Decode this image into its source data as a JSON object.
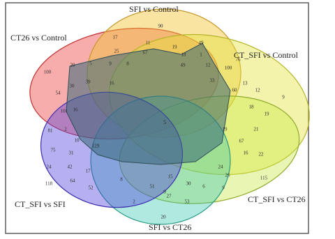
{
  "sets": [
    {
      "id": "ct26",
      "name": "CT26 vs Control",
      "color": "#f04a4a"
    },
    {
      "id": "sfi_control",
      "name": "SFI vs Control",
      "color": "#f2c431"
    },
    {
      "id": "ct_sfi_control",
      "name": "CT_SFI vs Control",
      "color": "#e3e33a"
    },
    {
      "id": "ct_sfi_ct26",
      "name": "CT_SFI vs CT26",
      "color": "#c7e840"
    },
    {
      "id": "sfi_ct26",
      "name": "SFI vs CT26",
      "color": "#39c9b0"
    },
    {
      "id": "ct_sfi_sfi",
      "name": "CT_SFI vs SFI",
      "color": "#4b39d9"
    },
    {
      "id": "center_region",
      "name": "",
      "color": "#3a6a7a"
    }
  ],
  "counts": [
    {
      "id": "sfi-only",
      "value": "90"
    },
    {
      "id": "r1",
      "value": "17"
    },
    {
      "id": "r2",
      "value": "11"
    },
    {
      "id": "r3",
      "value": "19"
    },
    {
      "id": "r4",
      "value": "49"
    },
    {
      "id": "r5",
      "value": "25"
    },
    {
      "id": "r6",
      "value": "67"
    },
    {
      "id": "r7",
      "value": "18"
    },
    {
      "id": "r8",
      "value": "1"
    },
    {
      "id": "r9",
      "value": "76"
    },
    {
      "id": "ct26-only",
      "value": "100"
    },
    {
      "id": "r10",
      "value": "20"
    },
    {
      "id": "r11",
      "value": "5"
    },
    {
      "id": "r12",
      "value": "9"
    },
    {
      "id": "r13",
      "value": "8"
    },
    {
      "id": "r14",
      "value": "12"
    },
    {
      "id": "r15",
      "value": "100"
    },
    {
      "id": "r16",
      "value": "49"
    },
    {
      "id": "r17",
      "value": "54"
    },
    {
      "id": "r18",
      "value": "30"
    },
    {
      "id": "r19",
      "value": "39"
    },
    {
      "id": "r20",
      "value": "16"
    },
    {
      "id": "r21",
      "value": "33"
    },
    {
      "id": "r22",
      "value": "13"
    },
    {
      "id": "r23",
      "value": "12"
    },
    {
      "id": "r24",
      "value": "9"
    },
    {
      "id": "ctsficontrol-only",
      "value": "101"
    },
    {
      "id": "r25",
      "value": "16"
    },
    {
      "id": "r26",
      "value": "5"
    },
    {
      "id": "r27",
      "value": "60"
    },
    {
      "id": "r28",
      "value": "18"
    },
    {
      "id": "r29",
      "value": "19"
    },
    {
      "id": "r30",
      "value": "81"
    },
    {
      "id": "r31",
      "value": "2"
    },
    {
      "id": "r32",
      "value": "19"
    },
    {
      "id": "r33",
      "value": "21"
    },
    {
      "id": "r34",
      "value": "10"
    },
    {
      "id": "r35",
      "value": "129"
    },
    {
      "id": "r36",
      "value": "67"
    },
    {
      "id": "r37",
      "value": "16"
    },
    {
      "id": "r38",
      "value": "22"
    },
    {
      "id": "r39",
      "value": "75"
    },
    {
      "id": "r40",
      "value": "31"
    },
    {
      "id": "r41",
      "value": "24"
    },
    {
      "id": "r42",
      "value": "42"
    },
    {
      "id": "r43",
      "value": "24"
    },
    {
      "id": "r44",
      "value": "26"
    },
    {
      "id": "r45",
      "value": "17"
    },
    {
      "id": "r46",
      "value": "115"
    },
    {
      "id": "ctsfict26-only",
      "value": "118"
    },
    {
      "id": "r47",
      "value": "64"
    },
    {
      "id": "r48",
      "value": "8"
    },
    {
      "id": "r49",
      "value": "15"
    },
    {
      "id": "r50",
      "value": "30"
    },
    {
      "id": "r51",
      "value": "9"
    },
    {
      "id": "r52",
      "value": "52"
    },
    {
      "id": "r53",
      "value": "51"
    },
    {
      "id": "r54",
      "value": "6"
    },
    {
      "id": "r55",
      "value": "9"
    },
    {
      "id": "r56",
      "value": "2"
    },
    {
      "id": "r57",
      "value": "27"
    },
    {
      "id": "r58",
      "value": "53"
    },
    {
      "id": "r59",
      "value": "20"
    },
    {
      "id": "sfict26-only",
      "value": "60"
    }
  ]
}
